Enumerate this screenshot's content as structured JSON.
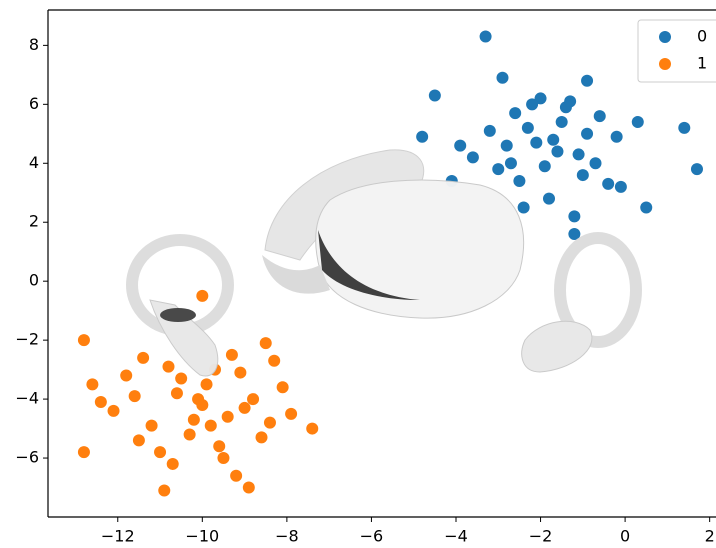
{
  "chart_data": {
    "type": "scatter",
    "series": [
      {
        "name": "0",
        "color": "#1f77b4",
        "x": [
          -1.7,
          -2.3,
          -1.1,
          -0.6,
          -2.8,
          -1.9,
          -1.4,
          -0.2,
          -3.2,
          -2.5,
          -1.0,
          -2.0,
          -1.6,
          -0.9,
          -2.6,
          -3.6,
          -0.4,
          -1.3,
          -2.1,
          -1.8,
          -0.7,
          -3.0,
          -2.4,
          0.3,
          -1.5,
          -2.7,
          -1.2,
          -0.1,
          -3.9,
          -2.2,
          -3.3,
          1.7,
          1.4,
          -4.5,
          -4.8,
          -0.9,
          -2.9,
          -1.2,
          0.5,
          -4.1
        ],
        "values": [
          4.8,
          5.2,
          4.3,
          5.6,
          4.6,
          3.9,
          5.9,
          4.9,
          5.1,
          3.4,
          3.6,
          6.2,
          4.4,
          5.0,
          5.7,
          4.2,
          3.3,
          6.1,
          4.7,
          2.8,
          4.0,
          3.8,
          2.5,
          5.4,
          5.4,
          4.0,
          2.2,
          3.2,
          4.6,
          6.0,
          8.3,
          3.8,
          5.2,
          6.3,
          4.9,
          6.8,
          6.9,
          1.6,
          2.5,
          3.4
        ]
      },
      {
        "name": "1",
        "color": "#ff7f0e",
        "x": [
          -10,
          -10.6,
          -9.4,
          -9.9,
          -11.2,
          -8.8,
          -10.3,
          -9.1,
          -11.6,
          -8.4,
          -10.8,
          -9.6,
          -12.1,
          -8.1,
          -10.1,
          -11.0,
          -9.3,
          -9.8,
          -10.5,
          -8.6,
          -11.8,
          -9.0,
          -10.7,
          -12.4,
          -7.9,
          -9.5,
          -11.4,
          -8.3,
          -10.2,
          -9.7,
          -10,
          -12.8,
          -12.8,
          -10.9,
          -8.9,
          -7.4,
          -12.6,
          -8.5,
          -11.5,
          -9.2
        ],
        "values": [
          -4.2,
          -3.8,
          -4.6,
          -3.5,
          -4.9,
          -4.0,
          -5.2,
          -3.1,
          -3.9,
          -4.8,
          -2.9,
          -5.6,
          -4.4,
          -3.6,
          -4.0,
          -5.8,
          -2.5,
          -4.9,
          -3.3,
          -5.3,
          -3.2,
          -4.3,
          -6.2,
          -4.1,
          -4.5,
          -6.0,
          -2.6,
          -2.7,
          -4.7,
          -3.0,
          -0.5,
          -2.0,
          -5.8,
          -7.1,
          -7.0,
          -5.0,
          -3.5,
          -2.1,
          -5.4,
          -6.6
        ]
      }
    ],
    "xlim": [
      -13.65,
      2.15
    ],
    "ylim": [
      -8,
      9.2
    ],
    "xticks": [
      {
        "value": -12,
        "label": "−12"
      },
      {
        "value": -10,
        "label": "−10"
      },
      {
        "value": -8,
        "label": "−8"
      },
      {
        "value": -6,
        "label": "−6"
      },
      {
        "value": -4,
        "label": "−4"
      },
      {
        "value": -2,
        "label": "−2"
      },
      0,
      2
    ],
    "yticks": [
      {
        "value": -6,
        "label": "−6"
      },
      {
        "value": -4,
        "label": "−4"
      },
      {
        "value": -2,
        "label": "−2"
      },
      0,
      2,
      4,
      6,
      8
    ],
    "legend": "upper right"
  }
}
